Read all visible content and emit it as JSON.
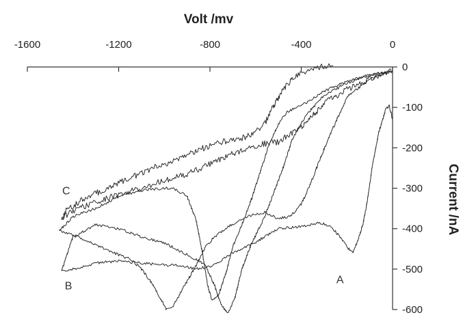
{
  "chart_data": {
    "type": "line",
    "title": "",
    "xlabel": "Volt /mv",
    "ylabel": "Current /nA",
    "xlim": [
      -1600,
      0
    ],
    "ylim": [
      -600,
      0
    ],
    "x_ticks": [
      -1600,
      -1200,
      -800,
      -400,
      0
    ],
    "y_ticks": [
      0,
      -100,
      -200,
      -300,
      -400,
      -500,
      -600
    ],
    "x_axis_position": "top",
    "y_axis_position": "right",
    "grid": false,
    "legend": "none",
    "line_color": "#2a2a2a",
    "annotations": [
      {
        "text": "C",
        "x": -1430,
        "y": -305
      },
      {
        "text": "B",
        "x": -1420,
        "y": -540
      },
      {
        "text": "A",
        "x": -230,
        "y": -525
      }
    ],
    "series": [
      {
        "label": "A",
        "noise": 4,
        "points": [
          [
            0,
            -130
          ],
          [
            -15,
            -95
          ],
          [
            -30,
            -105
          ],
          [
            -60,
            -160
          ],
          [
            -90,
            -250
          ],
          [
            -110,
            -330
          ],
          [
            -130,
            -390
          ],
          [
            -150,
            -425
          ],
          [
            -175,
            -460
          ],
          [
            -200,
            -445
          ],
          [
            -230,
            -420
          ],
          [
            -270,
            -395
          ],
          [
            -320,
            -385
          ],
          [
            -400,
            -395
          ],
          [
            -500,
            -400
          ],
          [
            -560,
            -420
          ],
          [
            -620,
            -440
          ],
          [
            -700,
            -460
          ],
          [
            -780,
            -490
          ],
          [
            -860,
            -500
          ],
          [
            -940,
            -490
          ],
          [
            -1000,
            -490
          ],
          [
            -1100,
            -485
          ],
          [
            -1200,
            -480
          ],
          [
            -1300,
            -485
          ],
          [
            -1400,
            -500
          ],
          [
            -1450,
            -505
          ],
          [
            -1400,
            -420
          ],
          [
            -1300,
            -390
          ],
          [
            -1200,
            -400
          ],
          [
            -1100,
            -420
          ],
          [
            -1000,
            -435
          ],
          [
            -950,
            -450
          ],
          [
            -880,
            -470
          ],
          [
            -820,
            -490
          ],
          [
            -780,
            -540
          ],
          [
            -750,
            -590
          ],
          [
            -720,
            -610
          ],
          [
            -690,
            -570
          ],
          [
            -660,
            -500
          ],
          [
            -620,
            -440
          ],
          [
            -560,
            -370
          ],
          [
            -520,
            -310
          ],
          [
            -480,
            -250
          ],
          [
            -440,
            -180
          ],
          [
            -380,
            -120
          ],
          [
            -300,
            -70
          ],
          [
            -200,
            -40
          ],
          [
            -100,
            -20
          ],
          [
            0,
            -10
          ]
        ]
      },
      {
        "label": "B",
        "noise": 4,
        "points": [
          [
            0,
            -10
          ],
          [
            -100,
            -30
          ],
          [
            -200,
            -75
          ],
          [
            -280,
            -175
          ],
          [
            -330,
            -245
          ],
          [
            -360,
            -290
          ],
          [
            -400,
            -340
          ],
          [
            -450,
            -370
          ],
          [
            -500,
            -375
          ],
          [
            -560,
            -360
          ],
          [
            -640,
            -370
          ],
          [
            -720,
            -395
          ],
          [
            -780,
            -420
          ],
          [
            -820,
            -445
          ],
          [
            -860,
            -490
          ],
          [
            -900,
            -530
          ],
          [
            -930,
            -560
          ],
          [
            -960,
            -590
          ],
          [
            -990,
            -600
          ],
          [
            -1020,
            -570
          ],
          [
            -1060,
            -530
          ],
          [
            -1100,
            -500
          ],
          [
            -1150,
            -475
          ],
          [
            -1200,
            -465
          ],
          [
            -1300,
            -440
          ],
          [
            -1380,
            -420
          ],
          [
            -1460,
            -405
          ],
          [
            -1400,
            -370
          ],
          [
            -1300,
            -350
          ],
          [
            -1200,
            -320
          ],
          [
            -1100,
            -305
          ],
          [
            -1000,
            -300
          ],
          [
            -960,
            -300
          ],
          [
            -900,
            -320
          ],
          [
            -860,
            -380
          ],
          [
            -830,
            -470
          ],
          [
            -810,
            -540
          ],
          [
            -790,
            -580
          ],
          [
            -760,
            -560
          ],
          [
            -730,
            -510
          ],
          [
            -700,
            -445
          ],
          [
            -660,
            -390
          ],
          [
            -620,
            -330
          ],
          [
            -580,
            -260
          ],
          [
            -540,
            -190
          ],
          [
            -500,
            -140
          ],
          [
            -460,
            -110
          ],
          [
            -380,
            -90
          ],
          [
            -300,
            -60
          ],
          [
            -200,
            -35
          ],
          [
            -100,
            -20
          ],
          [
            0,
            -10
          ]
        ]
      },
      {
        "label": "C",
        "noise": 9,
        "points": [
          [
            0,
            -10
          ],
          [
            -100,
            -30
          ],
          [
            -200,
            -55
          ],
          [
            -300,
            -90
          ],
          [
            -400,
            -150
          ],
          [
            -500,
            -185
          ],
          [
            -560,
            -190
          ],
          [
            -600,
            -195
          ],
          [
            -700,
            -215
          ],
          [
            -800,
            -240
          ],
          [
            -900,
            -265
          ],
          [
            -1000,
            -280
          ],
          [
            -1100,
            -300
          ],
          [
            -1200,
            -315
          ],
          [
            -1300,
            -335
          ],
          [
            -1400,
            -355
          ],
          [
            -1450,
            -375
          ],
          [
            -1430,
            -355
          ],
          [
            -1350,
            -325
          ],
          [
            -1250,
            -300
          ],
          [
            -1150,
            -275
          ],
          [
            -1050,
            -250
          ],
          [
            -950,
            -230
          ],
          [
            -850,
            -205
          ],
          [
            -750,
            -185
          ],
          [
            -650,
            -175
          ],
          [
            -600,
            -160
          ],
          [
            -560,
            -140
          ],
          [
            -520,
            -95
          ],
          [
            -480,
            -55
          ],
          [
            -430,
            -25
          ],
          [
            -370,
            -10
          ],
          [
            -320,
            0
          ],
          [
            -260,
            3
          ]
        ]
      }
    ]
  }
}
